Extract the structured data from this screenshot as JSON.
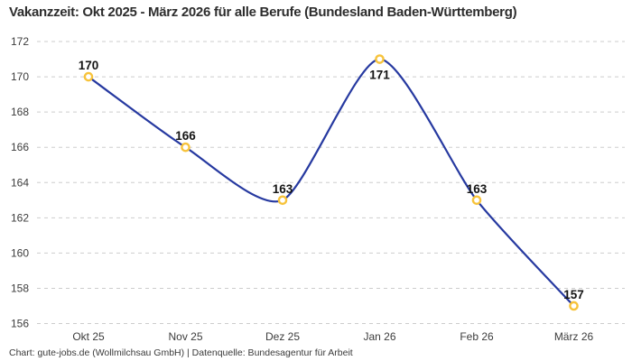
{
  "title": "Vakanzzeit: Okt 2025 - März 2026 für alle Berufe (Bundesland Baden-Württemberg)",
  "footer": "Chart: gute-jobs.de (Wollmilchsau GmbH) | Datenquelle: Bundesagentur für Arbeit",
  "colors": {
    "line": "#2639a0",
    "marker_ring": "#f7c33b",
    "marker_fill": "#ffffff",
    "gridline": "#cdcdcd",
    "background": "#ffffff"
  },
  "chart_data": {
    "type": "line",
    "title": "Vakanzzeit: Okt 2025 - März 2026 für alle Berufe (Bundesland Baden-Württemberg)",
    "categories": [
      "Okt 25",
      "Nov 25",
      "Dez 25",
      "Jan 26",
      "Feb 26",
      "März 26"
    ],
    "values": [
      170,
      166,
      163,
      171,
      163,
      157
    ],
    "data_labels": [
      "170",
      "166",
      "163",
      "171",
      "163",
      "157"
    ],
    "label_positions": [
      "above",
      "above",
      "above",
      "below",
      "above",
      "above"
    ],
    "xlabel": "",
    "ylabel": "",
    "ylim": [
      156,
      172
    ],
    "ytick_step": 2,
    "yticks": [
      156,
      158,
      160,
      162,
      164,
      166,
      168,
      170,
      172
    ],
    "grid": "horizontal-dashed",
    "legend": "none",
    "curve": "smooth"
  }
}
